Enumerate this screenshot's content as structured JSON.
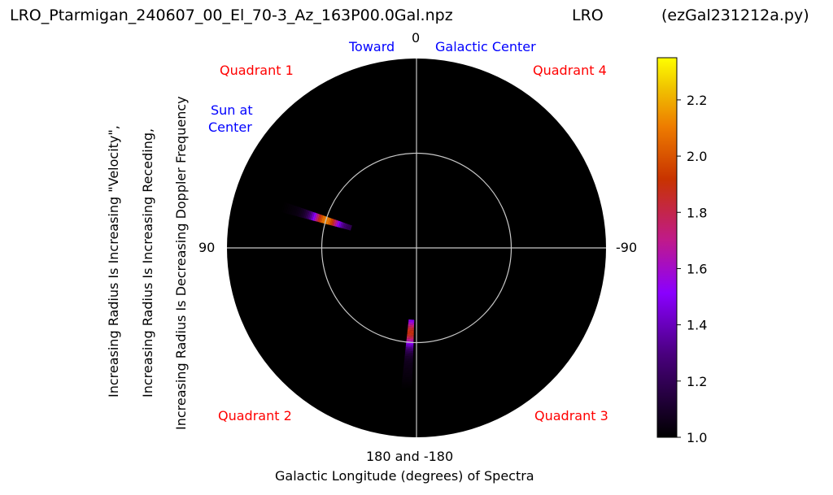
{
  "chart_data": {
    "type": "polar-heatmap",
    "title_left": "LRO_Ptarmigan_240607_00_El_70-3_Az_163P00.0Gal.npz",
    "title_center": "LRO",
    "title_right": "(ezGal231212a.py)",
    "angle_labels": {
      "top": "0",
      "left": "90",
      "right": "-90",
      "bottom": "180 and -180"
    },
    "xlabel": "Galactic Longitude (degrees) of Spectra",
    "ylabel_lines": [
      "Increasing Radius Is Increasing \"Velocity\",",
      "Increasing Radius Is Increasing Receding,",
      "Increasing Radius Is Decreasing Doppler Frequency"
    ],
    "annotations": {
      "toward": "Toward",
      "galactic_center": "Galactic Center",
      "sun_at": "Sun at",
      "center": "Center",
      "quadrant_1": "Quadrant 1",
      "quadrant_2": "Quadrant 2",
      "quadrant_3": "Quadrant 3",
      "quadrant_4": "Quadrant 4"
    },
    "colorbar": {
      "colormap": "gnuplot",
      "range": [
        1.0,
        2.35
      ],
      "ticks": [
        1.0,
        1.2,
        1.4,
        1.6,
        1.8,
        2.0,
        2.2
      ],
      "tick_labels": [
        "1.0",
        "1.2",
        "1.4",
        "1.6",
        "1.8",
        "2.0",
        "2.2"
      ]
    },
    "inner_circle_radius_fraction": 0.5,
    "grid": true,
    "spectra": [
      {
        "galactic_longitude_deg": 73,
        "radius_range": [
          0.36,
          0.74
        ],
        "peak_radius": 0.5,
        "peak_value": 2.2
      },
      {
        "galactic_longitude_deg": 176,
        "radius_range": [
          0.38,
          0.75
        ],
        "peak_radius": 0.45,
        "peak_value": 1.9
      }
    ]
  },
  "colors": {
    "background": "#000000",
    "grid": "#c8c8c8",
    "annotation_blue": "#0000ff",
    "annotation_red": "#ff0000"
  }
}
